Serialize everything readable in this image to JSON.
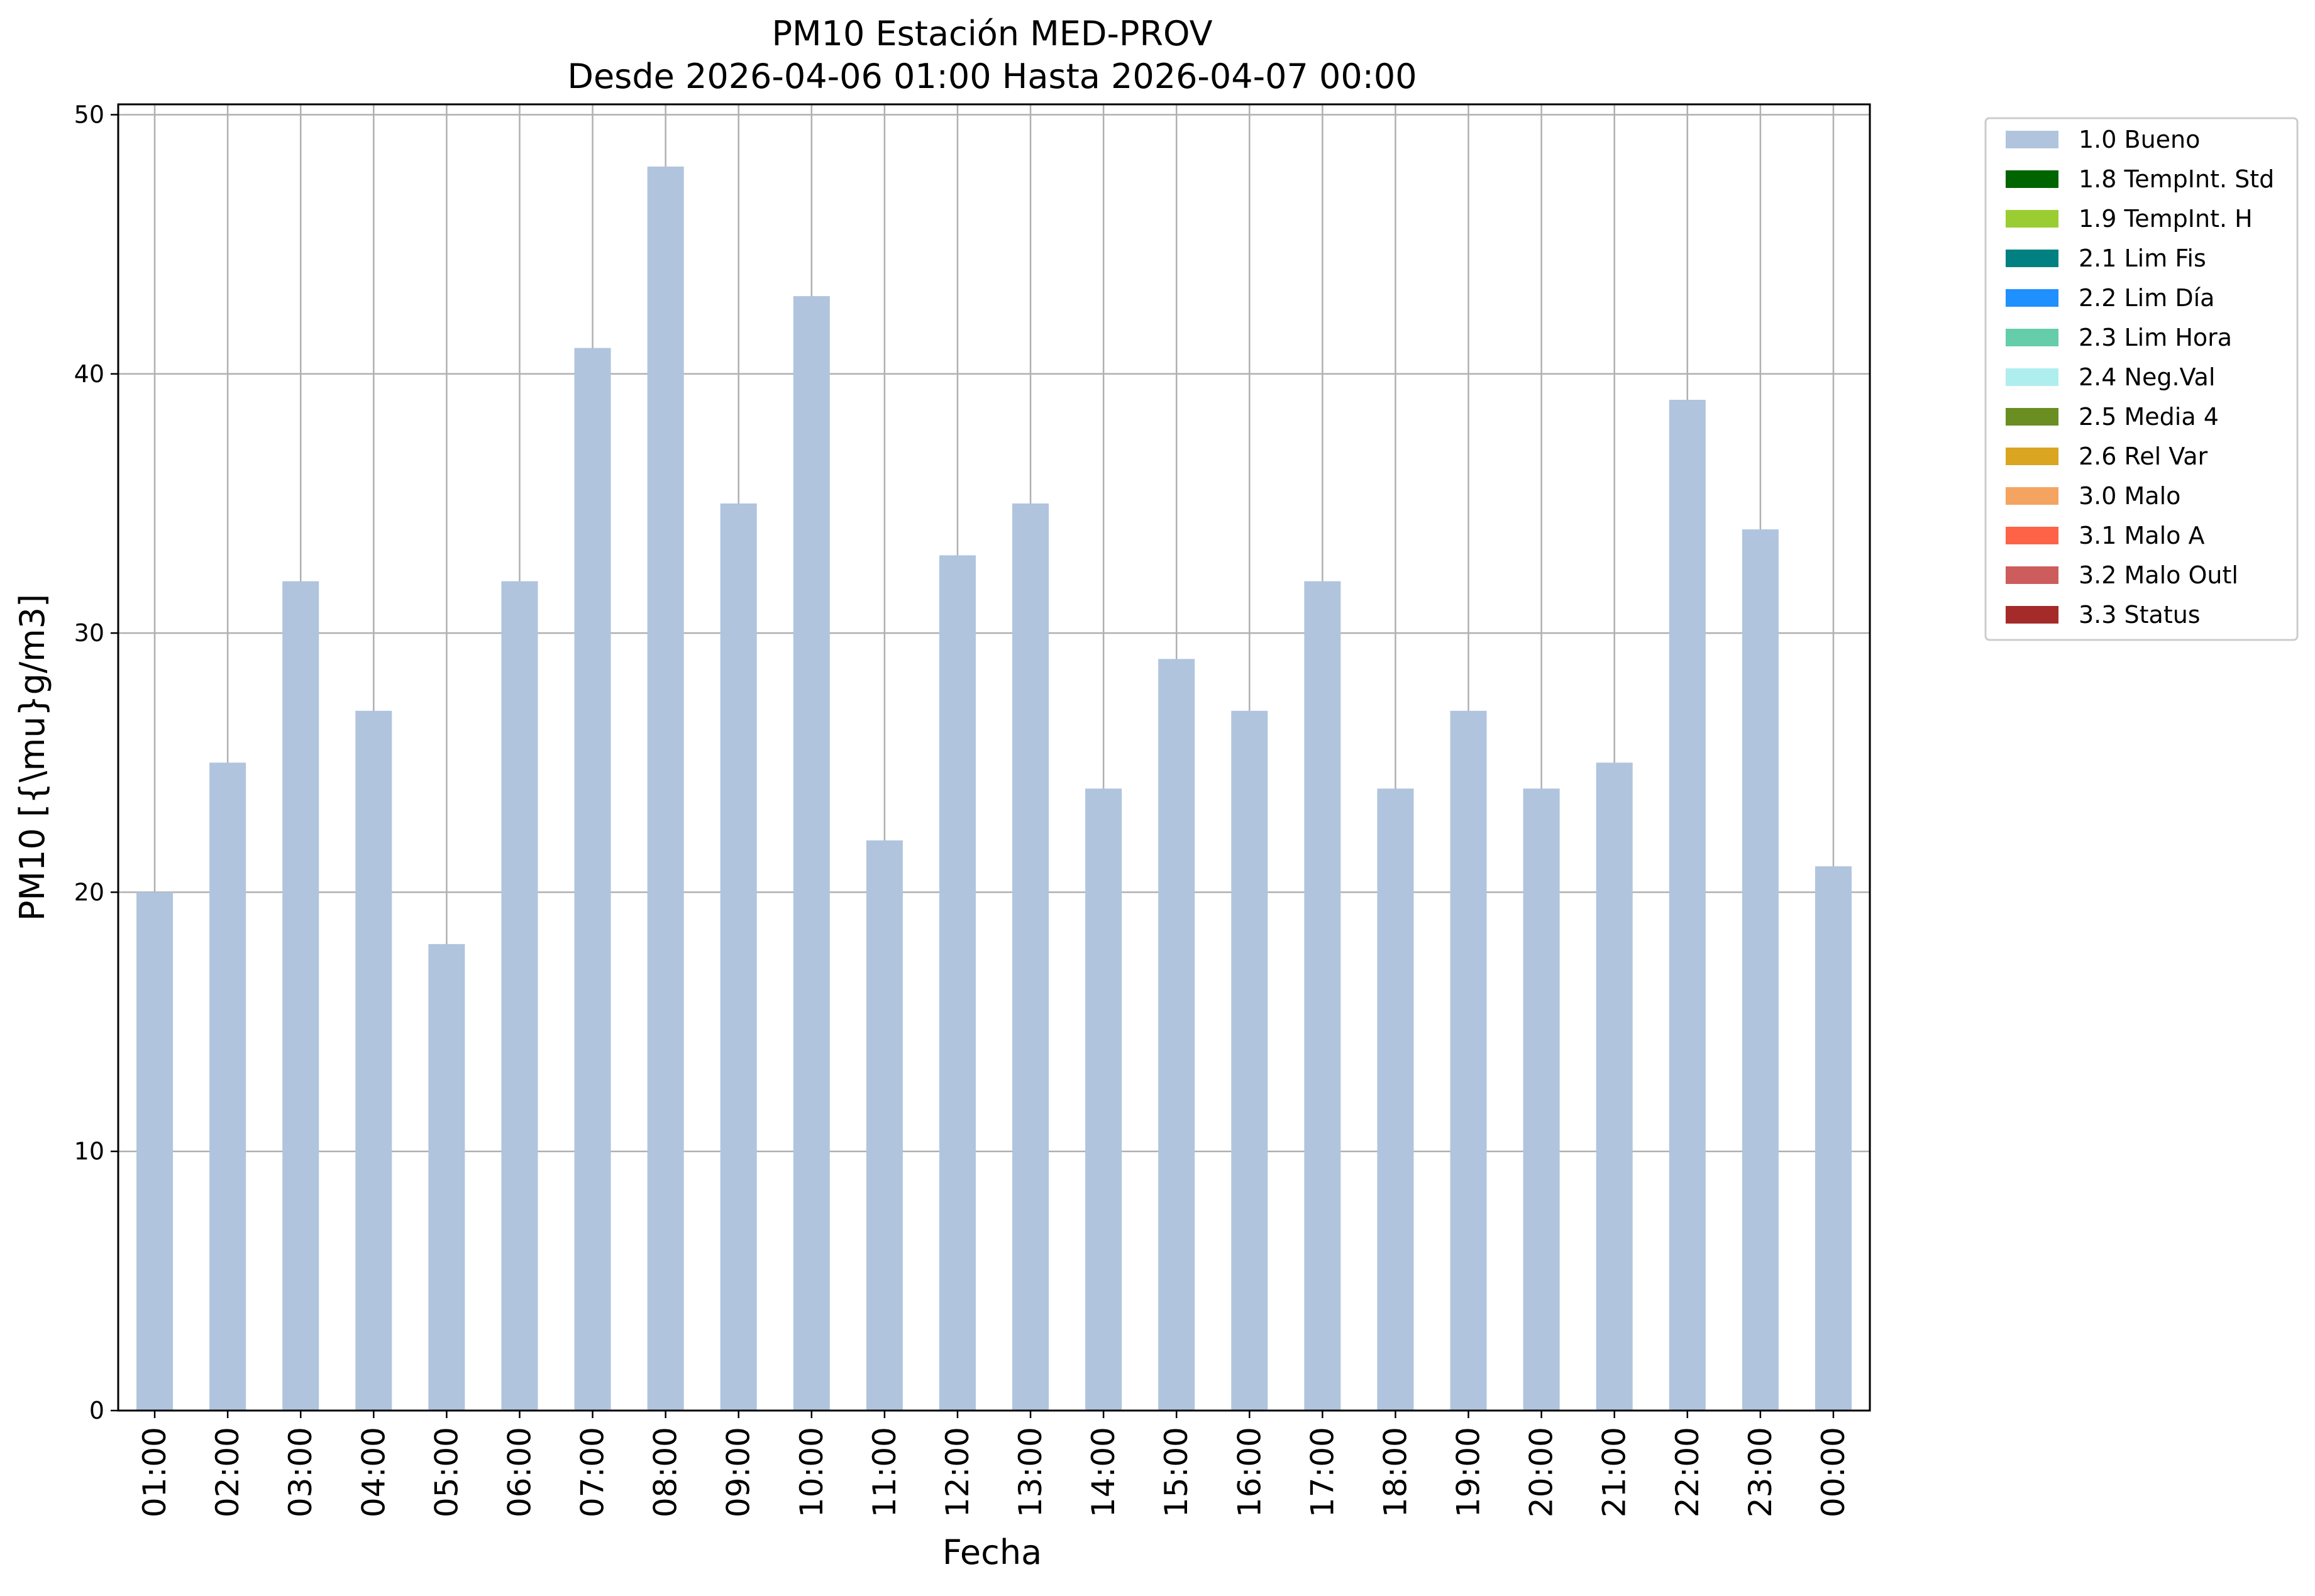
{
  "chart_data": {
    "type": "bar",
    "title": "PM10 Estación MED-PROV",
    "subtitle": "Desde 2026-04-06 01:00 Hasta 2026-04-07 00:00",
    "xlabel": "Fecha",
    "ylabel": "PM10 [{\\mu}g/m3]",
    "categories": [
      "01:00",
      "02:00",
      "03:00",
      "04:00",
      "05:00",
      "06:00",
      "07:00",
      "08:00",
      "09:00",
      "10:00",
      "11:00",
      "12:00",
      "13:00",
      "14:00",
      "15:00",
      "16:00",
      "17:00",
      "18:00",
      "19:00",
      "20:00",
      "21:00",
      "22:00",
      "23:00",
      "00:00"
    ],
    "series": [
      {
        "name": "1.0 Bueno",
        "color": "#b0c4de",
        "values": [
          20,
          25,
          32,
          27,
          18,
          32,
          41,
          48,
          35,
          43,
          22,
          33,
          35,
          24,
          29,
          27,
          32,
          24,
          27,
          24,
          25,
          39,
          34,
          21
        ]
      }
    ],
    "ylim": [
      0,
      50.4
    ],
    "yticks": [
      0,
      10,
      20,
      30,
      40,
      50
    ],
    "grid": true,
    "legend_position": "outside-top-right",
    "legend": [
      {
        "label": "1.0 Bueno",
        "color": "#b0c4de"
      },
      {
        "label": "1.8 TempInt. Std",
        "color": "#006400"
      },
      {
        "label": "1.9 TempInt. H",
        "color": "#9acd32"
      },
      {
        "label": "2.1 Lim Fis",
        "color": "#008080"
      },
      {
        "label": "2.2 Lim Día",
        "color": "#1e90ff"
      },
      {
        "label": "2.3 Lim Hora",
        "color": "#66cdaa"
      },
      {
        "label": "2.4 Neg.Val",
        "color": "#afeeee"
      },
      {
        "label": "2.5 Media 4",
        "color": "#6b8e23"
      },
      {
        "label": "2.6 Rel Var",
        "color": "#daa520"
      },
      {
        "label": "3.0 Malo",
        "color": "#f4a460"
      },
      {
        "label": "3.1 Malo A",
        "color": "#ff6347"
      },
      {
        "label": "3.2 Malo Outl",
        "color": "#cd5c5c"
      },
      {
        "label": "3.3 Status",
        "color": "#a52a2a"
      }
    ]
  }
}
